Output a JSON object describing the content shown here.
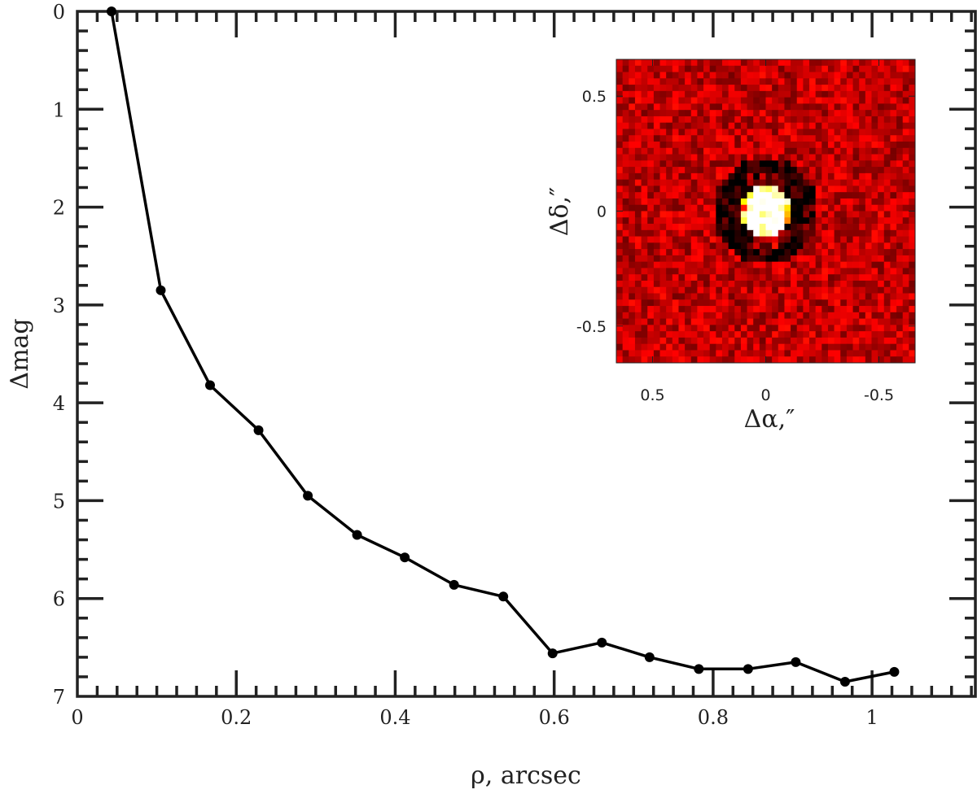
{
  "chart_data": [
    {
      "type": "line",
      "xlabel": "ρ, arcsec",
      "ylabel": "Δmag",
      "xlim": [
        0,
        1.13
      ],
      "ylim": [
        7,
        0
      ],
      "y_inverted": true,
      "xticks": [
        0,
        0.2,
        0.4,
        0.6,
        0.8,
        1
      ],
      "xtick_labels": [
        "0",
        "0.2",
        "0.4",
        "0.6",
        "0.8",
        "1"
      ],
      "yticks": [
        0,
        1,
        2,
        3,
        4,
        5,
        6,
        7
      ],
      "ytick_labels": [
        "0",
        "1",
        "2",
        "3",
        "4",
        "5",
        "6",
        "7"
      ],
      "grid": false,
      "series": [
        {
          "color": "#000000",
          "marker": "circle",
          "x": [
            0.043,
            0.105,
            0.167,
            0.228,
            0.29,
            0.352,
            0.412,
            0.474,
            0.536,
            0.598,
            0.66,
            0.72,
            0.782,
            0.844,
            0.904,
            0.966,
            1.028
          ],
          "y": [
            0.0,
            2.85,
            3.82,
            4.28,
            4.95,
            5.35,
            5.58,
            5.86,
            5.98,
            6.56,
            6.45,
            6.6,
            6.72,
            6.72,
            6.65,
            6.85,
            6.75
          ]
        }
      ]
    },
    {
      "type": "heatmap",
      "description_colormap": "hot",
      "xlabel": "Δα,″",
      "ylabel": "Δδ,″",
      "xlim": [
        0.66,
        -0.66
      ],
      "ylim": [
        -0.66,
        0.66
      ],
      "xticks": [
        0.5,
        0,
        -0.5
      ],
      "xtick_labels": [
        "0.5",
        "0",
        "-0.5"
      ],
      "yticks": [
        0.5,
        0,
        -0.5
      ],
      "ytick_labels": [
        "0.5",
        "0",
        "-0.5"
      ]
    }
  ]
}
